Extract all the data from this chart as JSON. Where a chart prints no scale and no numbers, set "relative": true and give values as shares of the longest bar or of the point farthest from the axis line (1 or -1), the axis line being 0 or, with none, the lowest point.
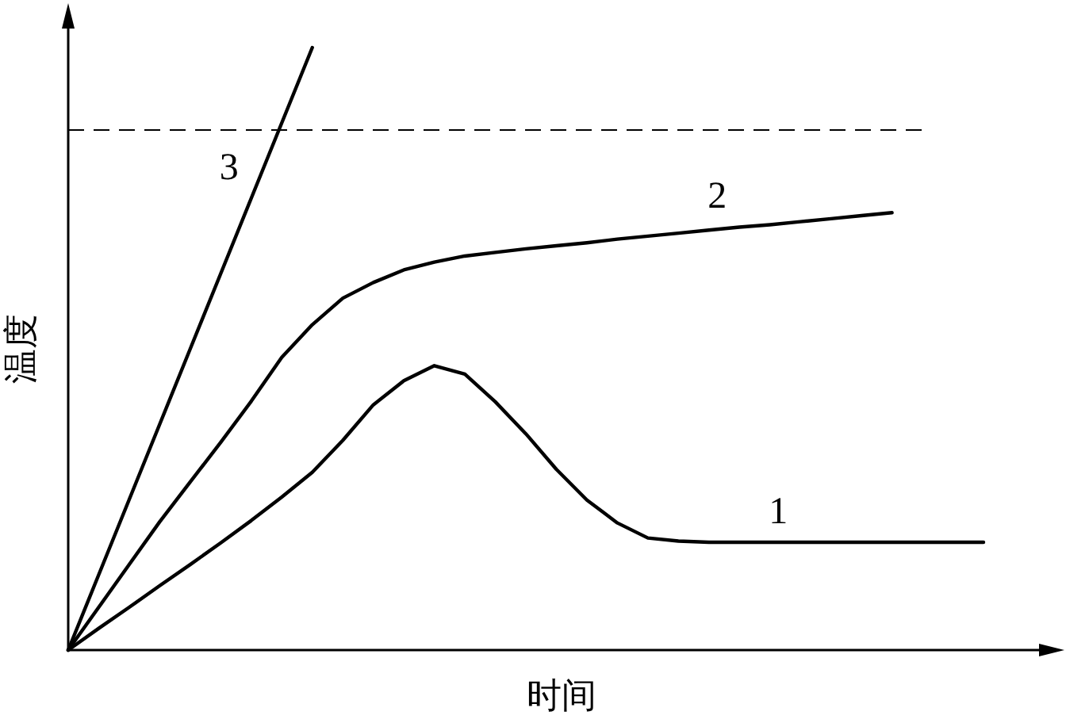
{
  "chart_data": {
    "type": "line",
    "xlabel": "时间",
    "ylabel": "温度",
    "relative": true,
    "marker": "none",
    "line_style": "solid",
    "categories": [
      null,
      null,
      null,
      null,
      null,
      null,
      null,
      null,
      null,
      null,
      null,
      null,
      null,
      null,
      null,
      null,
      null,
      null,
      null,
      null,
      null,
      null,
      null,
      null,
      null,
      null,
      null,
      null,
      null,
      null,
      null
    ],
    "series": [
      {
        "name": "1",
        "color": "#000000",
        "values": [
          0,
          0.036,
          0.071,
          0.107,
          0.142,
          0.178,
          0.215,
          0.254,
          0.295,
          0.348,
          0.407,
          0.447,
          0.472,
          0.458,
          0.412,
          0.359,
          0.3,
          0.249,
          0.211,
          0.186,
          0.181,
          0.179,
          0.179,
          0.179,
          0.179,
          0.179,
          0.179,
          0.179,
          0.179,
          0.179,
          0.179
        ]
      },
      {
        "name": "2",
        "color": "#000000",
        "values": [
          0,
          0.071,
          0.142,
          0.213,
          0.279,
          0.345,
          0.413,
          0.486,
          0.54,
          0.584,
          0.61,
          0.631,
          0.644,
          0.654,
          0.66,
          0.666,
          0.671,
          0.676,
          0.682,
          0.687,
          0.692,
          0.697,
          0.702,
          0.706,
          0.711,
          0.716,
          0.721,
          0.726,
          null,
          null,
          null
        ]
      },
      {
        "name": "3",
        "color": "#000000",
        "values": [
          0,
          0.125,
          0.25,
          0.375,
          0.5,
          0.625,
          0.75,
          0.875,
          1,
          null,
          null,
          null,
          null,
          null,
          null,
          null,
          null,
          null,
          null,
          null,
          null,
          null,
          null,
          null,
          null,
          null,
          null,
          null,
          null,
          null,
          null
        ]
      }
    ],
    "ref_lines": [
      {
        "axis": "y",
        "value": 0.863,
        "line_style": "dashed"
      }
    ]
  }
}
